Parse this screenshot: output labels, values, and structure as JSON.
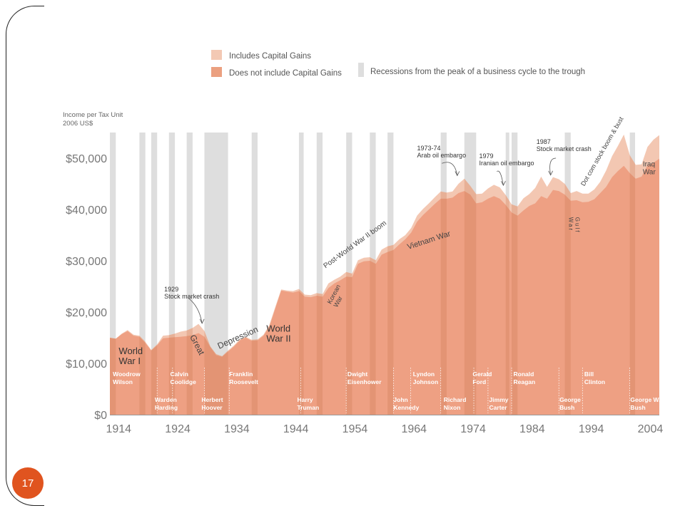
{
  "page_number": "17",
  "chart_data": {
    "type": "area",
    "ylabel_lines": [
      "Income per Tax Unit",
      "2006 US$"
    ],
    "ylim": [
      0,
      55000
    ],
    "xlim": [
      1913,
      2006
    ],
    "yticks": [
      {
        "v": 0,
        "label": "$0"
      },
      {
        "v": 10000,
        "label": "$10,000"
      },
      {
        "v": 20000,
        "label": "$20,000"
      },
      {
        "v": 30000,
        "label": "$30,000"
      },
      {
        "v": 40000,
        "label": "$40,000"
      },
      {
        "v": 50000,
        "label": "$50,000"
      }
    ],
    "xticks": [
      {
        "v": 1914,
        "label": "1914"
      },
      {
        "v": 1924,
        "label": "1924"
      },
      {
        "v": 1934,
        "label": "1934"
      },
      {
        "v": 1944,
        "label": "1944"
      },
      {
        "v": 1954,
        "label": "1954"
      },
      {
        "v": 1964,
        "label": "1964"
      },
      {
        "v": 1974,
        "label": "1974"
      },
      {
        "v": 1984,
        "label": "1984"
      },
      {
        "v": 1994,
        "label": "1994"
      },
      {
        "v": 2004,
        "label": "2004"
      }
    ],
    "legend": {
      "placement": "top",
      "entries": [
        {
          "label": "Includes Capital Gains",
          "color": "#f3c9b4"
        },
        {
          "label": "Does not include Capital Gains",
          "color": "#eba080"
        },
        {
          "label": "Recessions from the peak of a business cycle to the trough",
          "color": "#dedede"
        }
      ]
    },
    "series": [
      {
        "name": "Includes Capital Gains",
        "color": "#f3c7b2",
        "x": [
          1913,
          1914,
          1915,
          1916,
          1917,
          1918,
          1919,
          1920,
          1921,
          1922,
          1923,
          1924,
          1925,
          1926,
          1927,
          1928,
          1929,
          1930,
          1931,
          1932,
          1933,
          1934,
          1935,
          1936,
          1937,
          1938,
          1939,
          1940,
          1941,
          1942,
          1943,
          1944,
          1945,
          1946,
          1947,
          1948,
          1949,
          1950,
          1951,
          1952,
          1953,
          1954,
          1955,
          1956,
          1957,
          1958,
          1959,
          1960,
          1961,
          1962,
          1963,
          1964,
          1965,
          1966,
          1967,
          1968,
          1969,
          1970,
          1971,
          1972,
          1973,
          1974,
          1975,
          1976,
          1977,
          1978,
          1979,
          1980,
          1981,
          1982,
          1983,
          1984,
          1985,
          1986,
          1987,
          1988,
          1989,
          1990,
          1991,
          1992,
          1993,
          1994,
          1995,
          1996,
          1997,
          1998,
          1999,
          2000,
          2001,
          2002,
          2003,
          2004,
          2005,
          2006
        ],
        "values": [
          15000,
          14800,
          15800,
          16500,
          15600,
          15400,
          14200,
          12600,
          13700,
          15400,
          15500,
          15800,
          16200,
          16400,
          16900,
          17700,
          16300,
          13300,
          11800,
          11400,
          12500,
          13500,
          14700,
          15200,
          14600,
          14700,
          15600,
          17500,
          21000,
          24400,
          24200,
          24100,
          24500,
          23400,
          23300,
          23700,
          23500,
          25600,
          26300,
          26900,
          27800,
          27500,
          30100,
          30600,
          30700,
          30100,
          32200,
          32800,
          33100,
          34200,
          35000,
          36400,
          38800,
          40100,
          41200,
          42400,
          43500,
          43300,
          43500,
          45000,
          46000,
          44600,
          43000,
          43100,
          44100,
          44800,
          44300,
          42800,
          41000,
          40600,
          42200,
          43000,
          44200,
          46400,
          44400,
          46300,
          45900,
          45000,
          43200,
          43600,
          43100,
          43100,
          43900,
          45400,
          47600,
          50400,
          52400,
          54600,
          50600,
          48700,
          48800,
          52200,
          53600,
          54500
        ]
      },
      {
        "name": "Does not include Capital Gains",
        "color": "#eea083",
        "x": [
          1913,
          1914,
          1915,
          1916,
          1917,
          1918,
          1919,
          1920,
          1921,
          1922,
          1923,
          1924,
          1925,
          1926,
          1927,
          1928,
          1929,
          1930,
          1931,
          1932,
          1933,
          1934,
          1935,
          1936,
          1937,
          1938,
          1939,
          1940,
          1941,
          1942,
          1943,
          1944,
          1945,
          1946,
          1947,
          1948,
          1949,
          1950,
          1951,
          1952,
          1953,
          1954,
          1955,
          1956,
          1957,
          1958,
          1959,
          1960,
          1961,
          1962,
          1963,
          1964,
          1965,
          1966,
          1967,
          1968,
          1969,
          1970,
          1971,
          1972,
          1973,
          1974,
          1975,
          1976,
          1977,
          1978,
          1979,
          1980,
          1981,
          1982,
          1983,
          1984,
          1985,
          1986,
          1987,
          1988,
          1989,
          1990,
          1991,
          1992,
          1993,
          1994,
          1995,
          1996,
          1997,
          1998,
          1999,
          2000,
          2001,
          2002,
          2003,
          2004,
          2005,
          2006
        ],
        "values": [
          15000,
          14800,
          15700,
          16300,
          15400,
          15200,
          14000,
          12500,
          13500,
          14900,
          15000,
          15100,
          15200,
          15300,
          15500,
          15900,
          15200,
          13200,
          11600,
          11300,
          12300,
          13300,
          14500,
          15000,
          14400,
          14500,
          15400,
          17200,
          20700,
          24200,
          24000,
          23800,
          24100,
          23000,
          22900,
          23200,
          23000,
          24700,
          25600,
          26200,
          26900,
          26800,
          29400,
          29900,
          30000,
          29400,
          31200,
          31700,
          32100,
          33200,
          34200,
          35500,
          37600,
          38900,
          40000,
          41100,
          42100,
          42100,
          42300,
          43200,
          43600,
          42900,
          41200,
          41400,
          42100,
          42600,
          42100,
          40900,
          39400,
          38800,
          39800,
          40700,
          41200,
          42600,
          42100,
          43800,
          43600,
          42900,
          41700,
          41800,
          41400,
          41500,
          42000,
          43200,
          44400,
          46300,
          47500,
          48500,
          47100,
          46000,
          46400,
          48600,
          49100,
          49900
        ]
      }
    ],
    "recessions": [
      [
        1913,
        1914
      ],
      [
        1918,
        1919
      ],
      [
        1920,
        1921
      ],
      [
        1923,
        1924
      ],
      [
        1926,
        1927
      ],
      [
        1929,
        1933
      ],
      [
        1937,
        1938
      ],
      [
        1945,
        1945.8
      ],
      [
        1948,
        1949
      ],
      [
        1953,
        1954
      ],
      [
        1957,
        1958
      ],
      [
        1960,
        1961
      ],
      [
        1969,
        1970
      ],
      [
        1973,
        1975
      ],
      [
        1980,
        1980.6
      ],
      [
        1981,
        1982
      ],
      [
        1990,
        1991
      ],
      [
        2001,
        2001.9
      ]
    ],
    "presidents": [
      {
        "name": "Woodrow Wilson",
        "lines": [
          "Woodrow",
          "Wilson"
        ],
        "x": 1913.5,
        "row": 1,
        "start": 1913
      },
      {
        "name": "Calvin Coolidge",
        "lines": [
          "Calvin",
          "Coolidge"
        ],
        "x": 1923.2,
        "row": 1,
        "start": 1923.6
      },
      {
        "name": "Franklin Roosevelt",
        "lines": [
          "Franklin",
          "Roosevelt"
        ],
        "x": 1933.2,
        "row": 1,
        "start": 1933.2
      },
      {
        "name": "Dwight Eisenhower",
        "lines": [
          "Dwight",
          "Eisenhower"
        ],
        "x": 1953.2,
        "row": 1,
        "start": 1953
      },
      {
        "name": "Lyndon Johnson",
        "lines": [
          "Lyndon",
          "Johnson"
        ],
        "x": 1964.3,
        "row": 1,
        "start": 1963.9
      },
      {
        "name": "Gerald Ford",
        "lines": [
          "Gerald",
          "Ford"
        ],
        "x": 1974.4,
        "row": 1,
        "start": 1974.6
      },
      {
        "name": "Ronald Reagan",
        "lines": [
          "Ronald",
          "Reagan"
        ],
        "x": 1981.3,
        "row": 1,
        "start": 1981
      },
      {
        "name": "Bill Clinton",
        "lines": [
          "Bill",
          "Clinton"
        ],
        "x": 1993.3,
        "row": 1,
        "start": 1993
      },
      {
        "name": "Warden Harding",
        "lines": [
          "Warden",
          "Harding"
        ],
        "x": 1920.6,
        "row": 2,
        "start": 1921
      },
      {
        "name": "Herbert Hoover",
        "lines": [
          "Herbert",
          "Hoover"
        ],
        "x": 1928.5,
        "row": 2,
        "start": 1929
      },
      {
        "name": "Harry Truman",
        "lines": [
          "Harry",
          "Truman"
        ],
        "x": 1944.7,
        "row": 2,
        "start": 1945.3
      },
      {
        "name": "John Kennedy",
        "lines": [
          "John",
          "Kennedy"
        ],
        "x": 1961,
        "row": 2,
        "start": 1961
      },
      {
        "name": "Richard Nixon",
        "lines": [
          "Richard",
          "Nixon"
        ],
        "x": 1969.5,
        "row": 2,
        "start": 1969
      },
      {
        "name": "Jimmy Carter",
        "lines": [
          "Jimmy",
          "Carter"
        ],
        "x": 1977.2,
        "row": 2,
        "start": 1977
      },
      {
        "name": "George Bush",
        "lines": [
          "George",
          "Bush"
        ],
        "x": 1989.1,
        "row": 2,
        "start": 1989
      },
      {
        "name": "George W. Bush",
        "lines": [
          "George W.",
          "Bush"
        ],
        "x": 2001.1,
        "row": 2,
        "start": 2001
      }
    ],
    "events": [
      {
        "lines": [
          "World",
          "War I"
        ],
        "x": 1914.5,
        "y": 11800,
        "size": 13,
        "color": "#333",
        "rot": 0
      },
      {
        "lines": [
          "World",
          "War II"
        ],
        "x": 1939.5,
        "y": 16200,
        "size": 13,
        "color": "#333",
        "rot": 0
      },
      {
        "lines": [
          "Great"
        ],
        "x": 1926.5,
        "y": 15200,
        "size": 12,
        "color": "#444",
        "rot": 62
      },
      {
        "lines": [
          "Depression"
        ],
        "x": 1931.5,
        "y": 12800,
        "size": 12,
        "color": "#444",
        "rot": -24
      },
      {
        "lines": [
          "Korean",
          "War"
        ],
        "x": 1950.4,
        "y": 21500,
        "size": 9,
        "color": "#444",
        "rot": -62
      },
      {
        "lines": [
          "Post-World War II boom"
        ],
        "x": 1949.5,
        "y": 28500,
        "size": 10,
        "color": "#444",
        "rot": -36
      },
      {
        "lines": [
          "Vietnam War"
        ],
        "x": 1963.5,
        "y": 32200,
        "size": 11,
        "color": "#444",
        "rot": -18
      },
      {
        "lines": [
          "Gulf",
          "War"
        ],
        "x": 1991.8,
        "y": 38500,
        "size": 8,
        "color": "#444",
        "rot": 90
      },
      {
        "lines": [
          "Dot com stock boom & bust"
        ],
        "x": 1993.3,
        "y": 44500,
        "size": 9,
        "color": "#444",
        "rot": -60
      },
      {
        "lines": [
          "Iraq",
          "War"
        ],
        "x": 2003.2,
        "y": 48400,
        "size": 10,
        "color": "#444",
        "rot": 0
      },
      {
        "lines": [
          "1929",
          "Stock market crash"
        ],
        "x": 1922.2,
        "y": 24000,
        "size": 9,
        "color": "#333",
        "rot": 0
      },
      {
        "lines": [
          "1973-74",
          "Arab oil embargo"
        ],
        "x": 1965,
        "y": 51500,
        "size": 9,
        "color": "#333",
        "rot": 0
      },
      {
        "lines": [
          "1979",
          "Iranian oil embargo"
        ],
        "x": 1975.5,
        "y": 50000,
        "size": 9,
        "color": "#333",
        "rot": 0
      },
      {
        "lines": [
          "1987",
          "Stock market crash"
        ],
        "x": 1985.2,
        "y": 52800,
        "size": 9,
        "color": "#333",
        "rot": 0
      }
    ]
  }
}
